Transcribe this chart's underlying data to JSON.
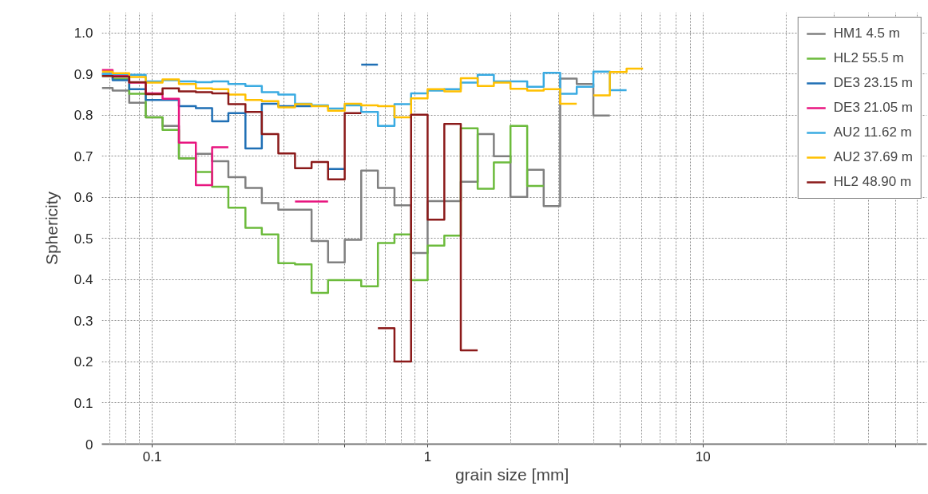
{
  "chart_data": {
    "type": "step",
    "xlabel": "grain size  [mm]",
    "ylabel": "Sphericity",
    "log": "x",
    "xlim": [
      0.0656,
      65
    ],
    "xticks": [
      0.1,
      {
        "value": 0.5,
        "label": null
      },
      1,
      {
        "value": 5,
        "label": null
      },
      10,
      {
        "value": 50,
        "label": null
      }
    ],
    "ylim": [
      0,
      1.05
    ],
    "yticks": [
      0,
      0.1,
      0.2,
      0.3,
      0.4,
      0.5,
      0.6,
      0.7,
      0.8,
      0.9,
      {
        "value": 1,
        "label": "1.0"
      }
    ],
    "grid": true,
    "legend": "top right",
    "line_style": "solid",
    "marker": "none",
    "series": [
      {
        "name": "HM1 4.5 m",
        "color": "#808080",
        "x": [
          0.0656,
          0.0718,
          0.0825,
          0.0947,
          0.109,
          0.125,
          0.144,
          0.165,
          0.189,
          0.218,
          0.25,
          0.287,
          0.33,
          0.379,
          0.435,
          0.5,
          0.574,
          0.66,
          0.758,
          0.871,
          1,
          1.15,
          1.32,
          1.52,
          1.74,
          2,
          2.3,
          2.64,
          3.03,
          3.48,
          4,
          4.59
        ],
        "values": [
          0.866,
          0.86,
          0.83,
          0.795,
          0.774,
          0.695,
          0.706,
          0.688,
          0.649,
          0.623,
          0.586,
          0.57,
          0.57,
          0.494,
          0.442,
          0.497,
          0.665,
          0.623,
          0.581,
          0.465,
          0.591,
          0.591,
          0.638,
          0.754,
          0.7,
          0.601,
          0.667,
          0.579,
          0.889,
          0.876,
          0.799,
          0.799
        ]
      },
      {
        "name": "HL2 55.5 m",
        "color": "#6cbb3c",
        "x": [
          0.0656,
          0.0718,
          0.0825,
          0.0947,
          0.109,
          0.125,
          0.144,
          0.165,
          0.189,
          0.218,
          0.25,
          0.287,
          0.33,
          0.379,
          0.435,
          0.5,
          0.574,
          0.66,
          0.758,
          0.871,
          1,
          1.15,
          1.32,
          1.52,
          1.74,
          2,
          2.3,
          2.64
        ],
        "values": [
          0.895,
          0.888,
          0.852,
          0.795,
          0.764,
          0.695,
          0.662,
          0.626,
          0.575,
          0.526,
          0.51,
          0.44,
          0.437,
          0.368,
          0.399,
          0.399,
          0.384,
          0.489,
          0.51,
          0.399,
          0.483,
          0.507,
          0.768,
          0.621,
          0.685,
          0.774,
          0.628,
          0.628
        ]
      },
      {
        "name": "DE3 23.15 m",
        "color": "#1f6fb5",
        "x": [
          0.0656,
          0.0718,
          0.0825,
          0.0947,
          0.109,
          0.125,
          0.144,
          0.165,
          0.189,
          0.218,
          0.25,
          0.287,
          0.33,
          0.379,
          0.435,
          0.5,
          0.574,
          0.66
        ],
        "values": [
          0.9,
          0.885,
          0.863,
          0.837,
          0.837,
          0.822,
          0.817,
          0.785,
          0.805,
          0.719,
          0.828,
          0.822,
          0.822,
          null,
          0.669,
          null,
          0.923,
          0.923
        ]
      },
      {
        "name": "DE3 21.05 m",
        "color": "#e8157f",
        "x": [
          0.0656,
          0.0718,
          0.0825,
          0.0947,
          0.109,
          0.125,
          0.144,
          0.165,
          0.189,
          0.218,
          0.25,
          0.287,
          0.33,
          0.379,
          0.435
        ],
        "values": [
          0.91,
          0.897,
          0.879,
          0.853,
          0.84,
          0.733,
          0.63,
          0.722,
          null,
          null,
          null,
          null,
          0.59,
          0.59,
          0.59
        ]
      },
      {
        "name": "AU2 11.62 m",
        "color": "#3aabe2",
        "x": [
          0.0656,
          0.0718,
          0.0825,
          0.0947,
          0.109,
          0.125,
          0.144,
          0.165,
          0.189,
          0.218,
          0.25,
          0.287,
          0.33,
          0.379,
          0.435,
          0.5,
          0.574,
          0.66,
          0.758,
          0.871,
          1,
          1.15,
          1.32,
          1.52,
          1.74,
          2,
          2.3,
          2.64,
          3.03,
          3.48,
          4,
          4.59,
          5.28
        ],
        "values": [
          0.9,
          0.9,
          0.898,
          0.882,
          0.885,
          0.882,
          0.88,
          0.882,
          0.876,
          0.871,
          0.856,
          0.85,
          0.828,
          0.824,
          0.816,
          0.824,
          0.808,
          0.774,
          0.827,
          0.853,
          0.86,
          0.863,
          0.879,
          0.898,
          0.882,
          0.882,
          0.869,
          0.903,
          0.852,
          0.869,
          0.906,
          0.861,
          0.861
        ]
      },
      {
        "name": "AU2 37.69 m",
        "color": "#ffc000",
        "x": [
          0.0656,
          0.0718,
          0.0825,
          0.0947,
          0.109,
          0.125,
          0.144,
          0.165,
          0.189,
          0.218,
          0.25,
          0.287,
          0.33,
          0.379,
          0.435,
          0.5,
          0.574,
          0.66,
          0.758,
          0.871,
          1,
          1.15,
          1.32,
          1.52,
          1.74,
          2,
          2.3,
          2.64,
          3.03,
          3.48,
          4,
          4.59,
          5.28,
          6.06
        ],
        "values": [
          0.906,
          0.902,
          0.893,
          0.879,
          0.887,
          0.876,
          0.865,
          0.863,
          0.85,
          0.837,
          0.834,
          0.819,
          0.827,
          0.822,
          0.811,
          0.828,
          0.824,
          0.822,
          0.795,
          0.841,
          0.863,
          0.858,
          0.89,
          0.871,
          0.879,
          0.864,
          0.86,
          0.863,
          0.828,
          null,
          0.848,
          0.905,
          0.913,
          0.913
        ]
      },
      {
        "name": "HL2 48.90 m",
        "color": "#8b1a1a",
        "x": [
          0.0656,
          0.0718,
          0.0825,
          0.0947,
          0.109,
          0.125,
          0.144,
          0.165,
          0.189,
          0.218,
          0.25,
          0.287,
          0.33,
          0.379,
          0.435,
          0.5,
          0.574,
          0.66,
          0.758,
          0.871,
          1,
          1.15,
          1.32,
          1.52
        ],
        "values": [
          0.895,
          0.894,
          0.88,
          0.851,
          0.865,
          0.858,
          0.856,
          0.853,
          0.827,
          0.808,
          0.754,
          0.707,
          0.671,
          0.686,
          0.644,
          0.805,
          null,
          0.282,
          0.201,
          0.801,
          0.546,
          0.779,
          0.228,
          0.228
        ]
      }
    ]
  }
}
